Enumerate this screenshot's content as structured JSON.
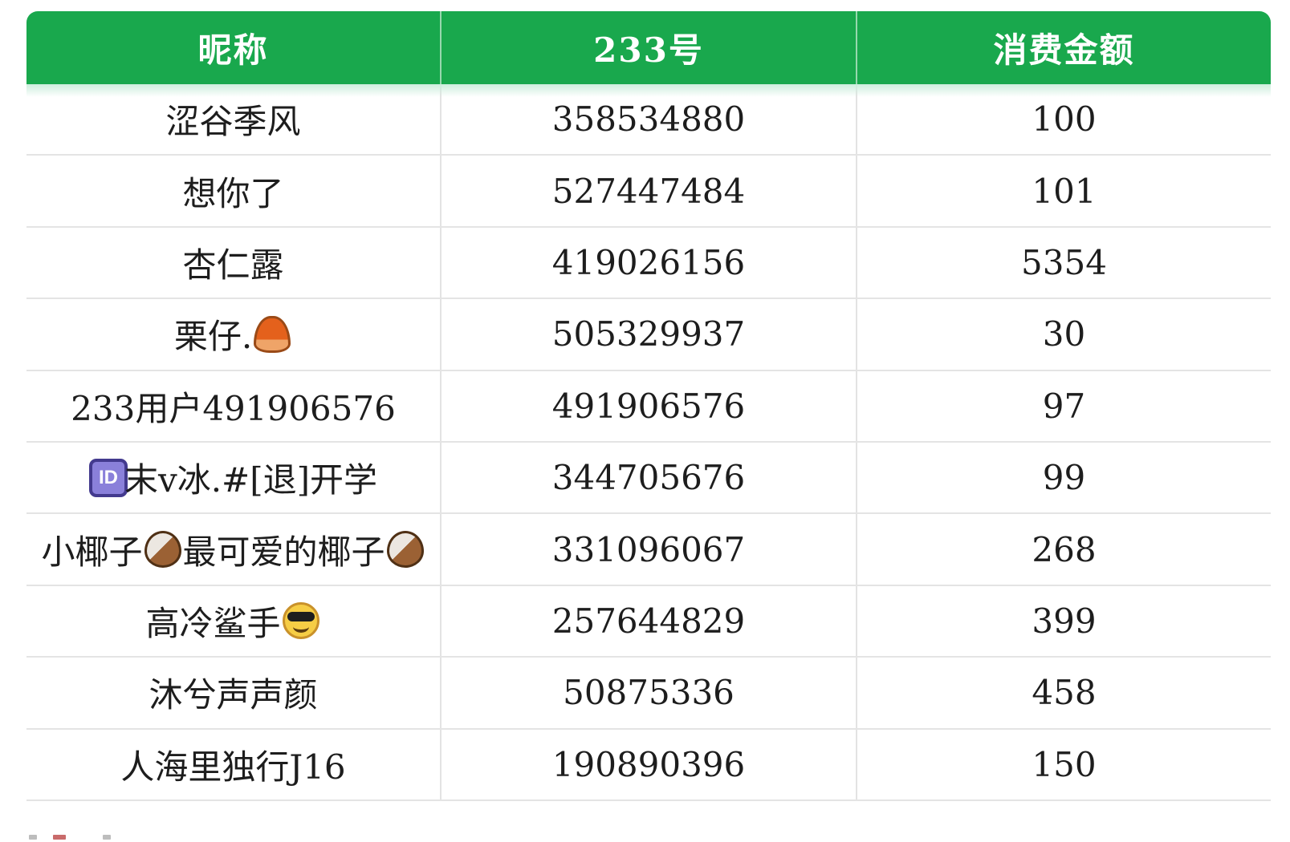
{
  "page": {
    "background": "#ffffff"
  },
  "colors": {
    "header_bg": "#19a84d",
    "header_text": "#ffffff",
    "body_text": "#1d1d1d",
    "row_border": "#e4e4e4",
    "column_border": "#e3e3e3",
    "header_fade": "#cdeedd",
    "id_badge_bg": "#8a80da",
    "id_badge_border": "#433a8e",
    "id_badge_text": "#ffffff"
  },
  "table": {
    "headers": [
      {
        "key": "nickname",
        "label": "昵称"
      },
      {
        "key": "account",
        "label": "233号"
      },
      {
        "key": "amount",
        "label": "消费金额"
      }
    ],
    "rows": [
      {
        "nickname_parts": [
          {
            "text": "涩谷季风"
          }
        ],
        "account": "358534880",
        "amount": "100"
      },
      {
        "nickname_parts": [
          {
            "text": "想你了"
          }
        ],
        "account": "527447484",
        "amount": "101"
      },
      {
        "nickname_parts": [
          {
            "text": "杏仁露"
          }
        ],
        "account": "419026156",
        "amount": "5354"
      },
      {
        "nickname_parts": [
          {
            "text": "栗仔."
          },
          {
            "emoji": "chestnut"
          }
        ],
        "account": "505329937",
        "amount": "30"
      },
      {
        "nickname_parts": [
          {
            "text": "233用户491906576"
          }
        ],
        "account": "491906576",
        "amount": "97"
      },
      {
        "nickname_parts": [
          {
            "badge": "ID"
          },
          {
            "text": "末v冰.#[退]开学"
          }
        ],
        "account": "344705676",
        "amount": "99"
      },
      {
        "nickname_parts": [
          {
            "text": "小椰子"
          },
          {
            "emoji": "coconut"
          },
          {
            "text": "最可爱的椰子"
          },
          {
            "emoji": "coconut"
          }
        ],
        "account": "331096067",
        "amount": "268"
      },
      {
        "nickname_parts": [
          {
            "text": "高冷鲨手"
          },
          {
            "emoji": "sunglasses-face"
          }
        ],
        "account": "257644829",
        "amount": "399"
      },
      {
        "nickname_parts": [
          {
            "text": "沐兮声声颜"
          }
        ],
        "account": "50875336",
        "amount": "458"
      },
      {
        "nickname_parts": [
          {
            "text": "人海里独行J16"
          }
        ],
        "account": "190890396",
        "amount": "150"
      }
    ]
  },
  "bottom_fragments": [
    {
      "color": "#bdbdbd",
      "width": 10
    },
    {
      "color": "#c96b6b",
      "width": 16
    },
    {
      "color": "#bdbdbd",
      "width": 10
    }
  ]
}
